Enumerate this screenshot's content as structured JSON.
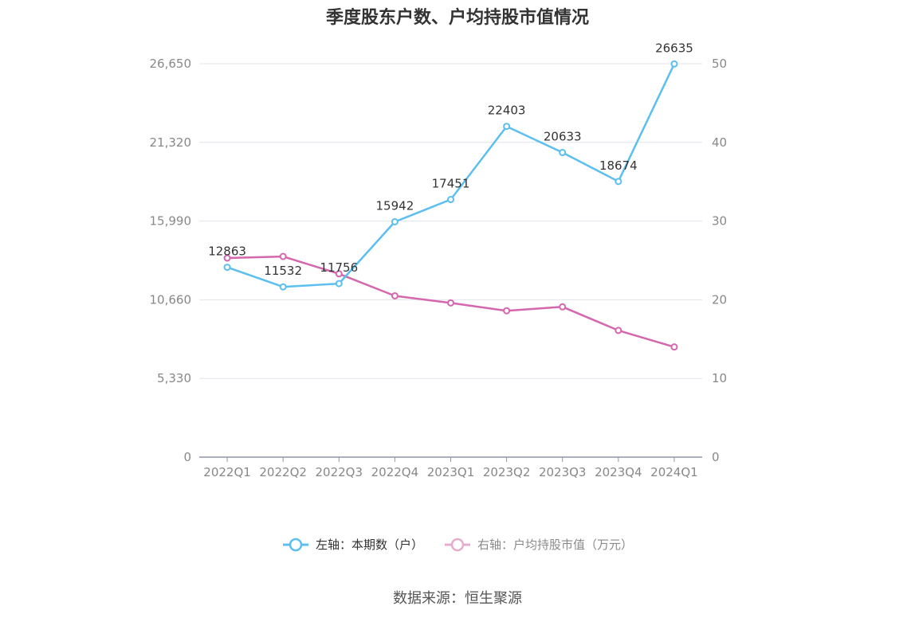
{
  "chart_data": {
    "type": "line",
    "title": "季度股东户数、户均持股市值情况",
    "categories": [
      "2022Q1",
      "2022Q2",
      "2022Q3",
      "2022Q4",
      "2023Q1",
      "2023Q2",
      "2023Q3",
      "2023Q4",
      "2024Q1"
    ],
    "series": [
      {
        "name": "左轴：本期数（户）",
        "axis": "left",
        "color": "#5bbfef",
        "values": [
          12863,
          11532,
          11756,
          15942,
          17451,
          22403,
          20633,
          18674,
          26635
        ],
        "labels": [
          "12863",
          "11532",
          "11756",
          "15942",
          "17451",
          "22403",
          "20633",
          "18674",
          "26635"
        ]
      },
      {
        "name": "右轴：户均持股市值（万元）",
        "axis": "right",
        "color": "#d467ad",
        "legend_color": "#e6acd0",
        "values": [
          25.3,
          25.5,
          23.3,
          20.5,
          19.6,
          18.6,
          19.1,
          16.1,
          14.0
        ]
      }
    ],
    "y_left": {
      "ticks": [
        "0",
        "5,330",
        "10,660",
        "15,990",
        "21,320",
        "26,650"
      ],
      "ylim": [
        0,
        26650
      ]
    },
    "y_right": {
      "ticks": [
        "0",
        "10",
        "20",
        "30",
        "40",
        "50"
      ],
      "ylim": [
        0,
        50
      ]
    },
    "grid": true,
    "legend_position": "bottom"
  },
  "source": "数据来源：恒生聚源"
}
